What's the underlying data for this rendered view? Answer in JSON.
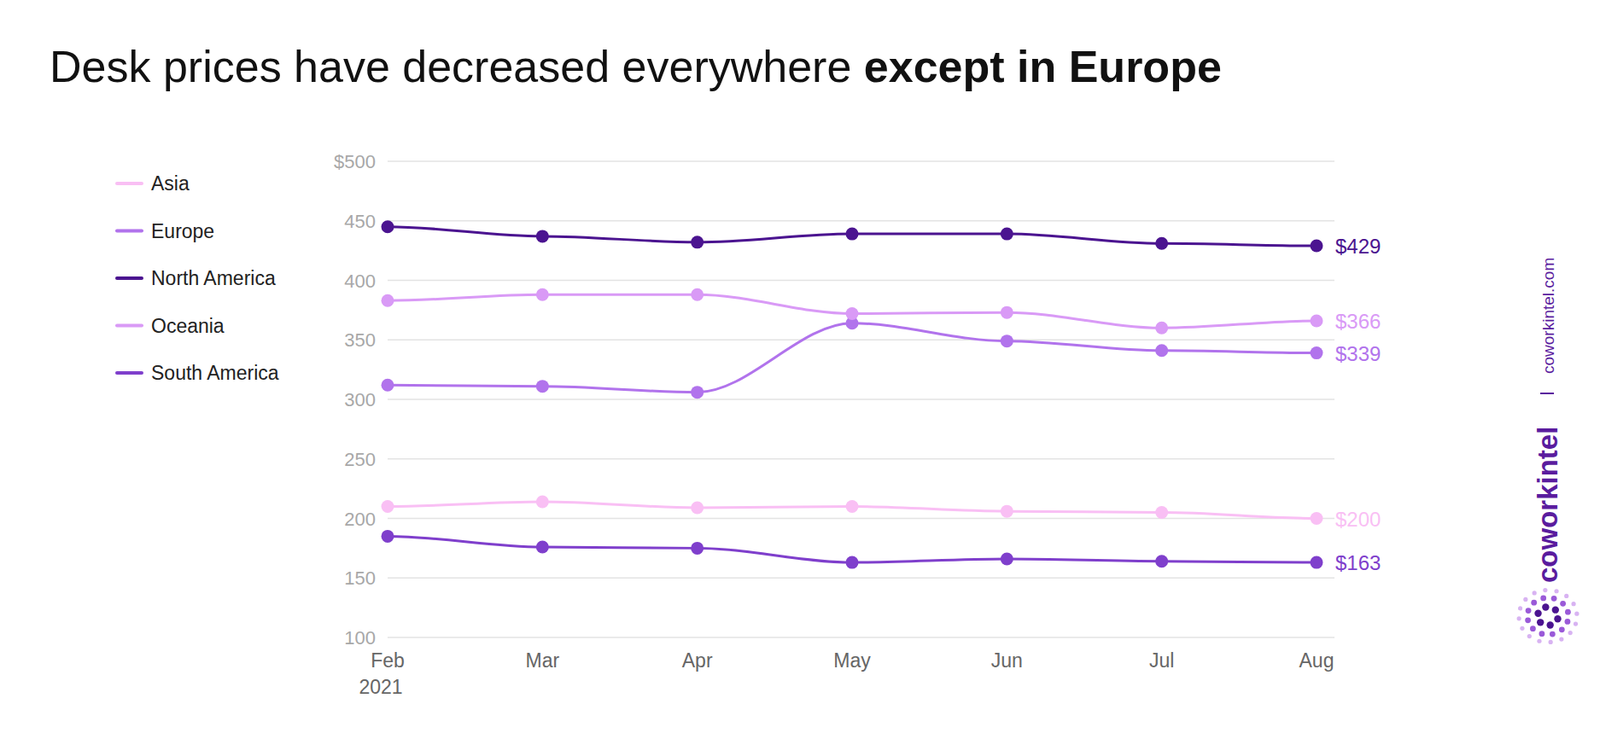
{
  "chart_data": {
    "type": "line",
    "title": "Desk prices have decreased everywhere except in Europe",
    "categories": [
      "Feb 2021",
      "Mar",
      "Apr",
      "May",
      "Jun",
      "Jul",
      "Aug"
    ],
    "series": [
      {
        "name": "Asia",
        "color": "#f9bff4",
        "values": [
          210,
          214,
          209,
          210,
          206,
          205,
          200
        ],
        "value_labels": [
          null,
          null,
          null,
          null,
          null,
          null,
          "$200"
        ]
      },
      {
        "name": "Europe",
        "color": "#b173ec",
        "values": [
          312,
          311,
          306,
          364,
          349,
          341,
          339
        ],
        "value_labels": [
          null,
          null,
          null,
          null,
          null,
          null,
          "$339"
        ]
      },
      {
        "name": "North America",
        "color": "#4b1490",
        "values": [
          445,
          437,
          432,
          439,
          439,
          431,
          429
        ],
        "value_labels": [
          null,
          null,
          null,
          null,
          null,
          null,
          "$429"
        ]
      },
      {
        "name": "Oceania",
        "color": "#d99af6",
        "values": [
          383,
          388,
          388,
          372,
          373,
          360,
          366
        ],
        "value_labels": [
          null,
          null,
          null,
          null,
          null,
          null,
          "$366"
        ]
      },
      {
        "name": "South America",
        "color": "#7f3fcc",
        "values": [
          185,
          176,
          175,
          163,
          166,
          164,
          163
        ],
        "value_labels": [
          null,
          null,
          null,
          null,
          null,
          null,
          "$163"
        ]
      }
    ],
    "ylim": [
      100,
      500
    ],
    "yticks": [
      100,
      150,
      200,
      250,
      300,
      350,
      400,
      450,
      {
        "value": 500,
        "label": "$500"
      }
    ],
    "grid": true,
    "legend": "left",
    "marker": "circle",
    "data_labels": true,
    "annotations": [
      "coworkintel",
      "coworkintel.com"
    ]
  }
}
